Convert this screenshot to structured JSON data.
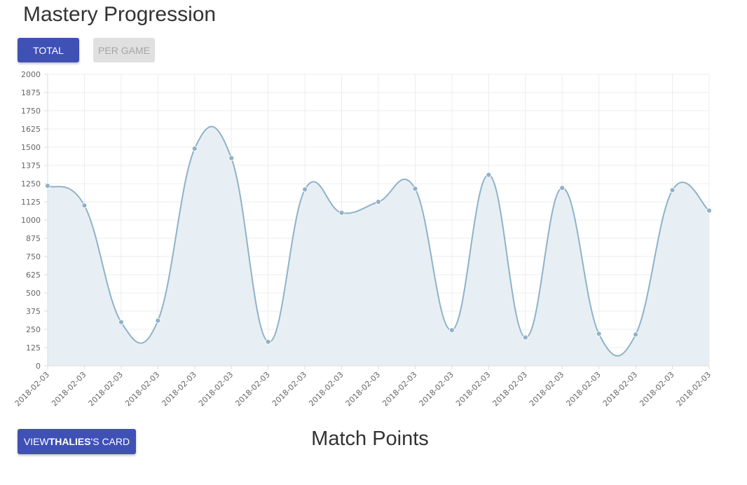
{
  "header": {
    "title": "Mastery Progression"
  },
  "toggle": {
    "total_label": "TOTAL",
    "per_game_label": "PER GAME"
  },
  "footer": {
    "card_button_prefix": "VIEW ",
    "card_button_name": "THALIES",
    "card_button_suffix": "'S CARD",
    "section_title": "Match Points"
  },
  "colors": {
    "primary": "#3f51b5",
    "disabled_bg": "#e0e0e0",
    "disabled_text": "#a6a6a6",
    "line": "#8fb2c9",
    "fill": "#e7eff4",
    "grid": "#ececec"
  },
  "chart_data": {
    "type": "area",
    "title": "",
    "xlabel": "",
    "ylabel": "",
    "ylim": [
      0,
      2000
    ],
    "yticks": [
      0,
      125,
      250,
      375,
      500,
      625,
      750,
      875,
      1000,
      1125,
      1250,
      1375,
      1500,
      1625,
      1750,
      1875,
      2000
    ],
    "categories": [
      "2018-02-03",
      "2018-02-03",
      "2018-02-03",
      "2018-02-03",
      "2018-02-03",
      "2018-02-03",
      "2018-02-03",
      "2018-02-03",
      "2018-02-03",
      "2018-02-03",
      "2018-02-03",
      "2018-02-03",
      "2018-02-03",
      "2018-02-03",
      "2018-02-03",
      "2018-02-03",
      "2018-02-03",
      "2018-02-03",
      "2018-02-03"
    ],
    "values": [
      1235,
      1100,
      300,
      310,
      1490,
      1425,
      165,
      1210,
      1050,
      1125,
      1215,
      245,
      1310,
      195,
      1220,
      220,
      215,
      1205,
      1065
    ],
    "grid": true,
    "legend": "none"
  }
}
